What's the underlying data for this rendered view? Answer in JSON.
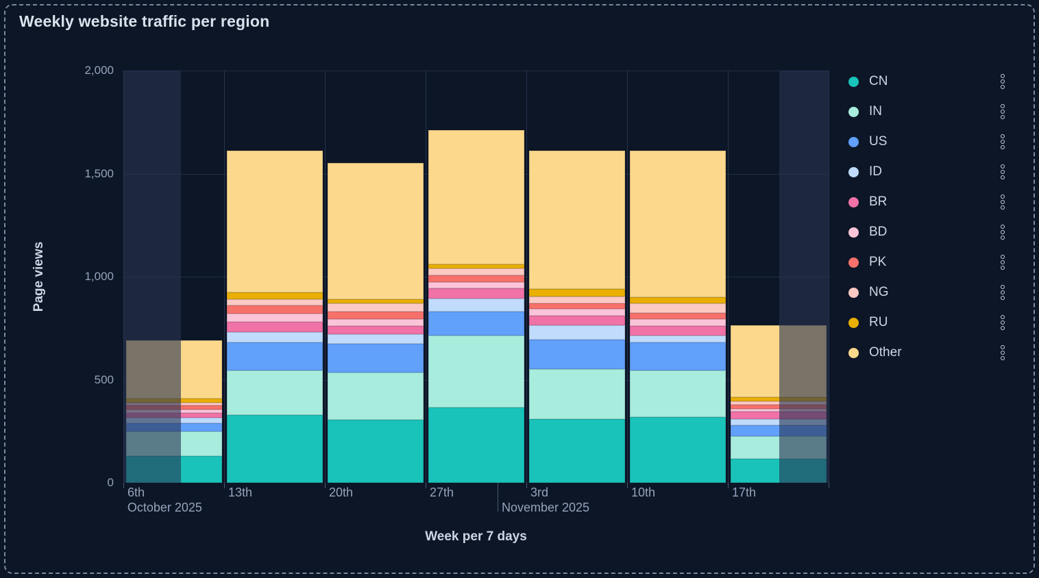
{
  "chart_data": {
    "type": "bar",
    "stacked": true,
    "title": "Weekly website traffic per region",
    "xlabel": "Week per 7 days",
    "ylabel": "Page views",
    "ylim": [
      0,
      2000
    ],
    "ytick_step": 500,
    "yticks": [
      {
        "value": 0,
        "label": "0"
      },
      {
        "value": 500,
        "label": "500"
      },
      {
        "value": 1000,
        "label": "1,000"
      },
      {
        "value": 1500,
        "label": "1,500"
      },
      {
        "value": 2000,
        "label": "2,000"
      }
    ],
    "categories": [
      "6th",
      "13th",
      "20th",
      "27th",
      "3rd",
      "10th",
      "17th"
    ],
    "month_labels": [
      {
        "text": "October 2025",
        "band_pos": 0.04
      },
      {
        "text": "November 2025",
        "band_pos": 3.755
      }
    ],
    "month_tick_band_pos": 3.714,
    "series": [
      {
        "name": "CN",
        "color": "#19c3b9",
        "values": [
          130,
          330,
          305,
          365,
          310,
          320,
          115
        ]
      },
      {
        "name": "IN",
        "color": "#a8ecde",
        "values": [
          120,
          215,
          230,
          350,
          240,
          225,
          110
        ]
      },
      {
        "name": "US",
        "color": "#61a0fb",
        "values": [
          40,
          135,
          140,
          115,
          145,
          135,
          55
        ]
      },
      {
        "name": "ID",
        "color": "#c0dbfb",
        "values": [
          25,
          50,
          45,
          65,
          70,
          35,
          30
        ]
      },
      {
        "name": "BR",
        "color": "#f072a7",
        "values": [
          25,
          50,
          40,
          50,
          45,
          45,
          35
        ]
      },
      {
        "name": "BD",
        "color": "#fcc4d8",
        "values": [
          15,
          40,
          35,
          30,
          35,
          35,
          15
        ]
      },
      {
        "name": "PK",
        "color": "#f7716b",
        "values": [
          20,
          40,
          35,
          30,
          25,
          30,
          20
        ]
      },
      {
        "name": "NG",
        "color": "#fcc9c3",
        "values": [
          15,
          30,
          40,
          35,
          35,
          45,
          15
        ]
      },
      {
        "name": "RU",
        "color": "#e9af03",
        "values": [
          20,
          35,
          20,
          20,
          35,
          30,
          20
        ]
      },
      {
        "name": "Other",
        "color": "#fbd88b",
        "values": [
          280,
          685,
          660,
          650,
          670,
          710,
          350
        ]
      }
    ],
    "totals": [
      690,
      1610,
      1550,
      1710,
      1610,
      1610,
      765
    ],
    "dim_regions": [
      [
        0,
        0.571
      ],
      [
        6.51,
        7
      ]
    ],
    "legend_position": "right",
    "grid": true,
    "icons": {
      "legend_item_menu": "kebab-dots-icon"
    },
    "colors": {
      "background": "#0d1626",
      "gridline": "#222d47",
      "axis_text": "#96a3bd",
      "title_text": "#d9e1ec",
      "dim_overlay": "rgba(39,52,81,0.61)",
      "dashed_border": "#7b89a5"
    }
  }
}
